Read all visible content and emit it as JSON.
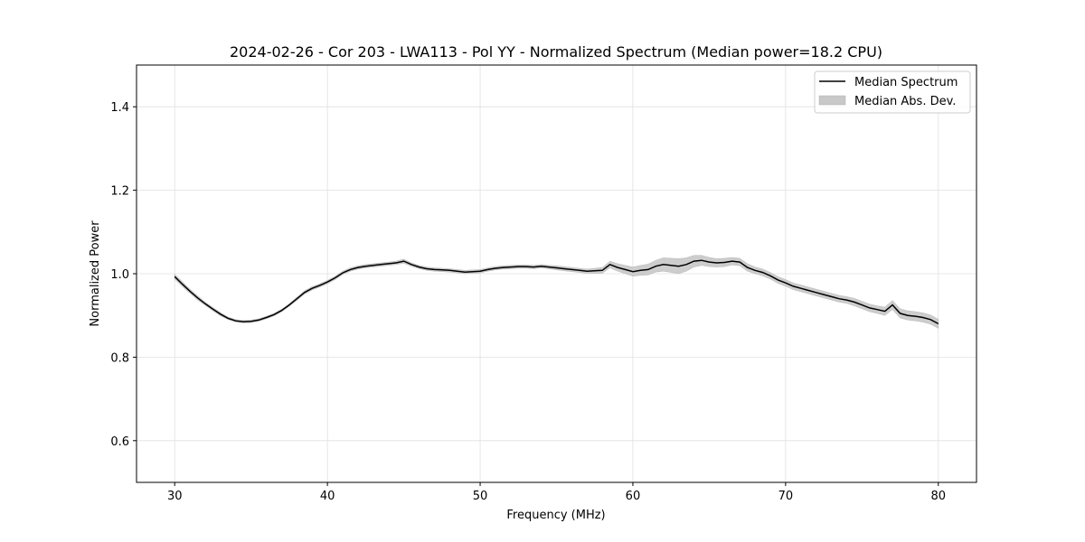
{
  "chart_data": {
    "type": "line",
    "title": "2024-02-26 - Cor 203 - LWA113 - Pol YY - Normalized Spectrum (Median power=18.2 CPU)",
    "xlabel": "Frequency (MHz)",
    "ylabel": "Normalized Power",
    "xlim": [
      27.5,
      82.5
    ],
    "ylim": [
      0.5,
      1.5
    ],
    "xticks": [
      30,
      40,
      50,
      60,
      70,
      80
    ],
    "yticks": [
      0.6,
      0.8,
      1.0,
      1.2,
      1.4
    ],
    "xtick_labels": [
      "30",
      "40",
      "50",
      "60",
      "70",
      "80"
    ],
    "ytick_labels": [
      "0.6",
      "0.8",
      "1.0",
      "1.2",
      "1.4"
    ],
    "grid": true,
    "legend_position": "top-right",
    "series": [
      {
        "name": "Median Spectrum",
        "color": "#000000",
        "x": [
          30,
          30.5,
          31,
          31.5,
          32,
          32.5,
          33,
          33.5,
          34,
          34.5,
          35,
          35.5,
          36,
          36.5,
          37,
          37.5,
          38,
          38.5,
          39,
          39.5,
          40,
          40.5,
          41,
          41.5,
          42,
          42.5,
          43,
          43.5,
          44,
          44.5,
          45,
          45.5,
          46,
          46.5,
          47,
          47.5,
          48,
          48.5,
          49,
          49.5,
          50,
          50.5,
          51,
          51.5,
          52,
          52.5,
          53,
          53.5,
          54,
          54.5,
          55,
          55.5,
          56,
          56.5,
          57,
          57.5,
          58,
          58.5,
          59,
          59.5,
          60,
          60.5,
          61,
          61.5,
          62,
          62.5,
          63,
          63.5,
          64,
          64.5,
          65,
          65.5,
          66,
          66.5,
          67,
          67.5,
          68,
          68.5,
          69,
          69.5,
          70,
          70.5,
          71,
          71.5,
          72,
          72.5,
          73,
          73.5,
          74,
          74.5,
          75,
          75.5,
          76,
          76.5,
          77,
          77.5,
          78,
          78.5,
          79,
          79.5,
          80
        ],
        "values": [
          0.993,
          0.975,
          0.958,
          0.942,
          0.928,
          0.915,
          0.903,
          0.893,
          0.887,
          0.885,
          0.886,
          0.889,
          0.895,
          0.902,
          0.912,
          0.925,
          0.94,
          0.955,
          0.965,
          0.972,
          0.98,
          0.99,
          1.002,
          1.01,
          1.015,
          1.018,
          1.02,
          1.022,
          1.024,
          1.026,
          1.03,
          1.022,
          1.016,
          1.012,
          1.01,
          1.009,
          1.008,
          1.006,
          1.004,
          1.005,
          1.006,
          1.01,
          1.013,
          1.015,
          1.016,
          1.017,
          1.017,
          1.016,
          1.018,
          1.016,
          1.014,
          1.012,
          1.01,
          1.008,
          1.006,
          1.007,
          1.008,
          1.022,
          1.015,
          1.01,
          1.005,
          1.008,
          1.01,
          1.018,
          1.022,
          1.02,
          1.018,
          1.022,
          1.03,
          1.032,
          1.028,
          1.026,
          1.027,
          1.03,
          1.028,
          1.015,
          1.008,
          1.003,
          0.995,
          0.985,
          0.978,
          0.97,
          0.965,
          0.96,
          0.955,
          0.95,
          0.945,
          0.94,
          0.937,
          0.932,
          0.925,
          0.918,
          0.914,
          0.91,
          0.925,
          0.905,
          0.9,
          0.898,
          0.895,
          0.89,
          0.88
        ]
      }
    ],
    "band": {
      "name": "Median Abs. Dev.",
      "color": "#c8c8c8",
      "mad": [
        0.006,
        0.006,
        0.005,
        0.005,
        0.004,
        0.004,
        0.004,
        0.003,
        0.003,
        0.003,
        0.003,
        0.003,
        0.003,
        0.003,
        0.003,
        0.003,
        0.004,
        0.004,
        0.004,
        0.004,
        0.004,
        0.004,
        0.004,
        0.004,
        0.004,
        0.004,
        0.004,
        0.004,
        0.004,
        0.004,
        0.005,
        0.004,
        0.004,
        0.004,
        0.004,
        0.004,
        0.004,
        0.004,
        0.004,
        0.004,
        0.004,
        0.004,
        0.004,
        0.004,
        0.004,
        0.004,
        0.004,
        0.004,
        0.004,
        0.004,
        0.005,
        0.005,
        0.005,
        0.005,
        0.005,
        0.006,
        0.007,
        0.008,
        0.009,
        0.01,
        0.011,
        0.012,
        0.013,
        0.014,
        0.016,
        0.017,
        0.018,
        0.016,
        0.014,
        0.012,
        0.011,
        0.01,
        0.01,
        0.009,
        0.009,
        0.009,
        0.008,
        0.008,
        0.008,
        0.008,
        0.008,
        0.008,
        0.008,
        0.008,
        0.008,
        0.008,
        0.008,
        0.008,
        0.008,
        0.009,
        0.009,
        0.009,
        0.009,
        0.01,
        0.011,
        0.011,
        0.011,
        0.011,
        0.011,
        0.011,
        0.011
      ]
    }
  }
}
